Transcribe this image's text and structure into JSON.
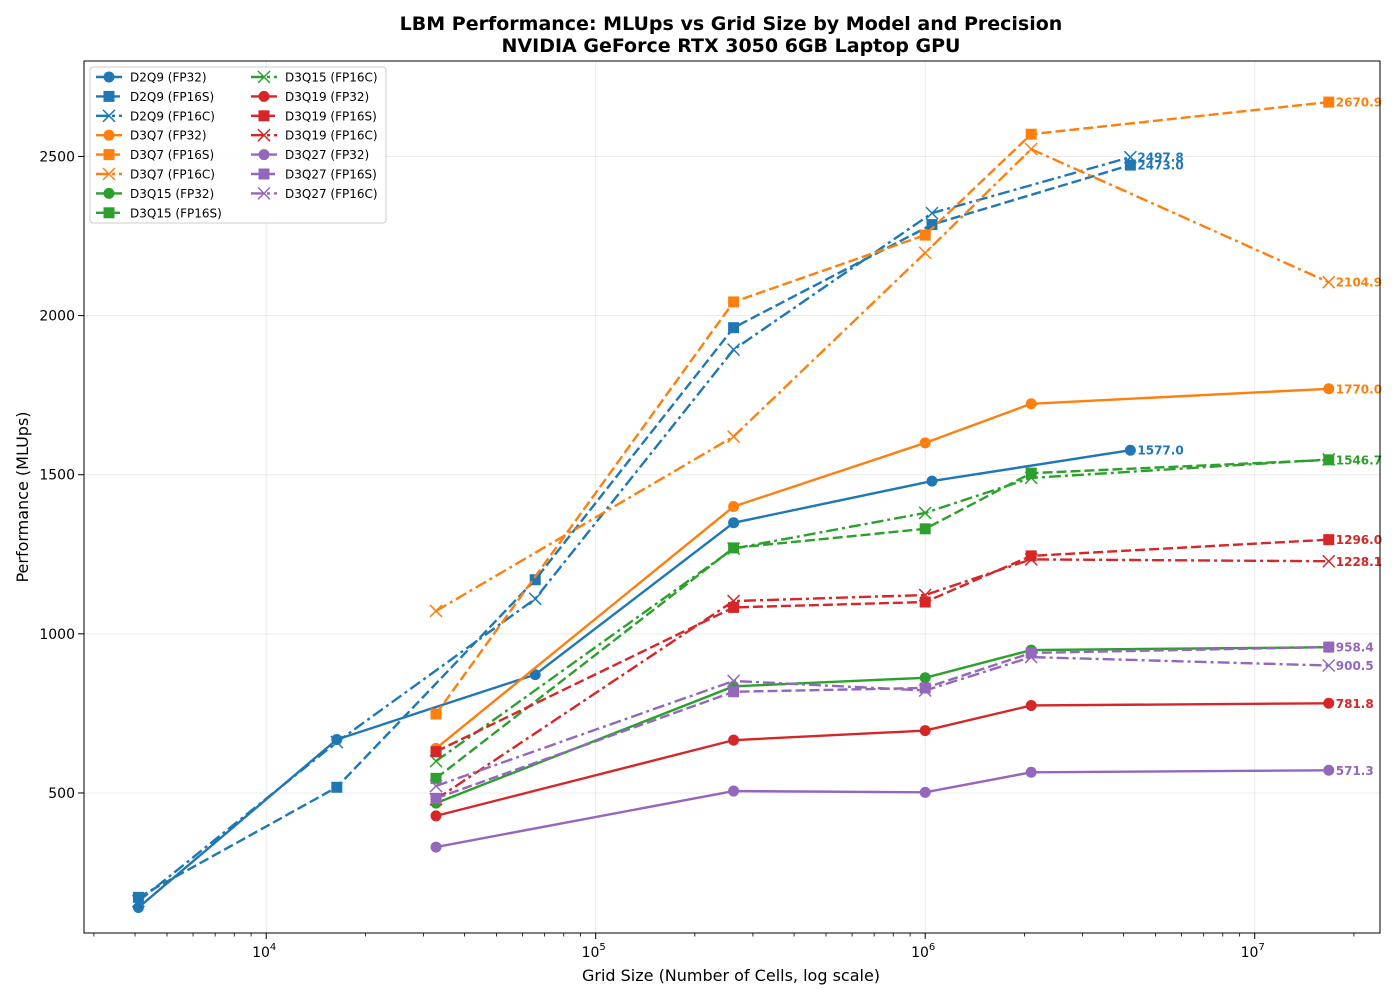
{
  "chart_data": {
    "type": "line",
    "title": "LBM Performance: MLUps vs Grid Size by Model and Precision",
    "subtitle": "NVIDIA GeForce RTX 3050 6GB Laptop GPU",
    "xlabel": "Grid Size (Number of Cells, log scale)",
    "ylabel": "Performance (MLUps)",
    "xscale": "log",
    "xlim": [
      2800,
      24000000
    ],
    "ylim": [
      60,
      2800
    ],
    "grid": true,
    "legend_position": "top-left",
    "legend_columns": 2,
    "x_ticks": [
      {
        "value": 10000,
        "base": "10",
        "exp": "4"
      },
      {
        "value": 100000,
        "base": "10",
        "exp": "5"
      },
      {
        "value": 1000000,
        "base": "10",
        "exp": "6"
      },
      {
        "value": 10000000,
        "base": "10",
        "exp": "7"
      }
    ],
    "y_ticks": [
      {
        "value": 500,
        "label": "500"
      },
      {
        "value": 1000,
        "label": "1000"
      },
      {
        "value": 1500,
        "label": "1500"
      },
      {
        "value": 2000,
        "label": "2000"
      },
      {
        "value": 2500,
        "label": "2500"
      }
    ],
    "series": [
      {
        "name": "D2Q9 (FP32)",
        "color": "#1f77b4",
        "dash": "solid",
        "marker": "circle",
        "x": [
          4096,
          16384,
          65536,
          262144,
          1048576,
          4194304
        ],
        "y": [
          140,
          668,
          872,
          1349,
          1480,
          1577
        ],
        "end_label": "1577.0"
      },
      {
        "name": "D2Q9 (FP16S)",
        "color": "#1f77b4",
        "dash": "dashed",
        "marker": "square",
        "x": [
          4096,
          16384,
          65536,
          262144,
          1048576,
          4194304
        ],
        "y": [
          172,
          518,
          1170,
          1962,
          2286,
          2473
        ],
        "end_label": "2473.0"
      },
      {
        "name": "D2Q9 (FP16C)",
        "color": "#1f77b4",
        "dash": "dashdot",
        "marker": "x",
        "x": [
          4096,
          16384,
          65536,
          262144,
          1048576,
          4194304
        ],
        "y": [
          160,
          660,
          1110,
          1893,
          2322,
          2497.8
        ],
        "end_label": "2497.8"
      },
      {
        "name": "D3Q7 (FP32)",
        "color": "#ff7f0e",
        "dash": "solid",
        "marker": "circle",
        "x": [
          32768,
          262144,
          1000000,
          2097152,
          16777216
        ],
        "y": [
          640,
          1400,
          1600,
          1723,
          1770
        ],
        "end_label": "1770.0"
      },
      {
        "name": "D3Q7 (FP16S)",
        "color": "#ff7f0e",
        "dash": "dashed",
        "marker": "square",
        "x": [
          32768,
          262144,
          1000000,
          2097152,
          16777216
        ],
        "y": [
          748,
          2043,
          2253,
          2570,
          2670.9
        ],
        "end_label": "2670.9"
      },
      {
        "name": "D3Q7 (FP16C)",
        "color": "#ff7f0e",
        "dash": "dashdot",
        "marker": "x",
        "x": [
          32768,
          262144,
          1000000,
          2097152,
          16777216
        ],
        "y": [
          1072,
          1620,
          2197,
          2523,
          2104.9
        ],
        "end_label": "2104.9"
      },
      {
        "name": "D3Q15 (FP32)",
        "color": "#2ca02c",
        "dash": "solid",
        "marker": "circle",
        "x": [
          32768,
          262144,
          1000000,
          2097152,
          16777216
        ],
        "y": [
          468,
          835,
          862,
          949,
          958
        ],
        "end_label": ""
      },
      {
        "name": "D3Q15 (FP16S)",
        "color": "#2ca02c",
        "dash": "dashed",
        "marker": "square",
        "x": [
          32768,
          262144,
          1000000,
          2097152,
          16777216
        ],
        "y": [
          546,
          1270,
          1330,
          1505,
          1546.7
        ],
        "end_label": "1546.7"
      },
      {
        "name": "D3Q15 (FP16C)",
        "color": "#2ca02c",
        "dash": "dashdot",
        "marker": "x",
        "x": [
          32768,
          262144,
          1000000,
          2097152,
          16777216
        ],
        "y": [
          600,
          1268,
          1380,
          1490,
          1548
        ],
        "end_label": ""
      },
      {
        "name": "D3Q19 (FP32)",
        "color": "#d62728",
        "dash": "solid",
        "marker": "circle",
        "x": [
          32768,
          262144,
          1000000,
          2097152,
          16777216
        ],
        "y": [
          428,
          666,
          696,
          775,
          781.8
        ],
        "end_label": "781.8"
      },
      {
        "name": "D3Q19 (FP16S)",
        "color": "#d62728",
        "dash": "dashed",
        "marker": "square",
        "x": [
          32768,
          262144,
          1000000,
          2097152,
          16777216
        ],
        "y": [
          630,
          1083,
          1100,
          1245,
          1296.0
        ],
        "end_label": "1296.0"
      },
      {
        "name": "D3Q19 (FP16C)",
        "color": "#d62728",
        "dash": "dashdot",
        "marker": "x",
        "x": [
          32768,
          262144,
          1000000,
          2097152,
          16777216
        ],
        "y": [
          480,
          1103,
          1122,
          1234,
          1228.1
        ],
        "end_label": "1228.1"
      },
      {
        "name": "D3Q27 (FP32)",
        "color": "#9467bd",
        "dash": "solid",
        "marker": "circle",
        "x": [
          32768,
          262144,
          1000000,
          2097152,
          16777216
        ],
        "y": [
          330,
          506,
          502,
          565,
          571.3
        ],
        "end_label": "571.3"
      },
      {
        "name": "D3Q27 (FP16S)",
        "color": "#9467bd",
        "dash": "dashed",
        "marker": "square",
        "x": [
          32768,
          262144,
          1000000,
          2097152,
          16777216
        ],
        "y": [
          483,
          818,
          830,
          940,
          958.4
        ],
        "end_label": "958.4"
      },
      {
        "name": "D3Q27 (FP16C)",
        "color": "#9467bd",
        "dash": "dashdot",
        "marker": "x",
        "x": [
          32768,
          262144,
          1000000,
          2097152,
          16777216
        ],
        "y": [
          522,
          852,
          822,
          927,
          900.5
        ],
        "end_label": "900.5"
      }
    ]
  }
}
